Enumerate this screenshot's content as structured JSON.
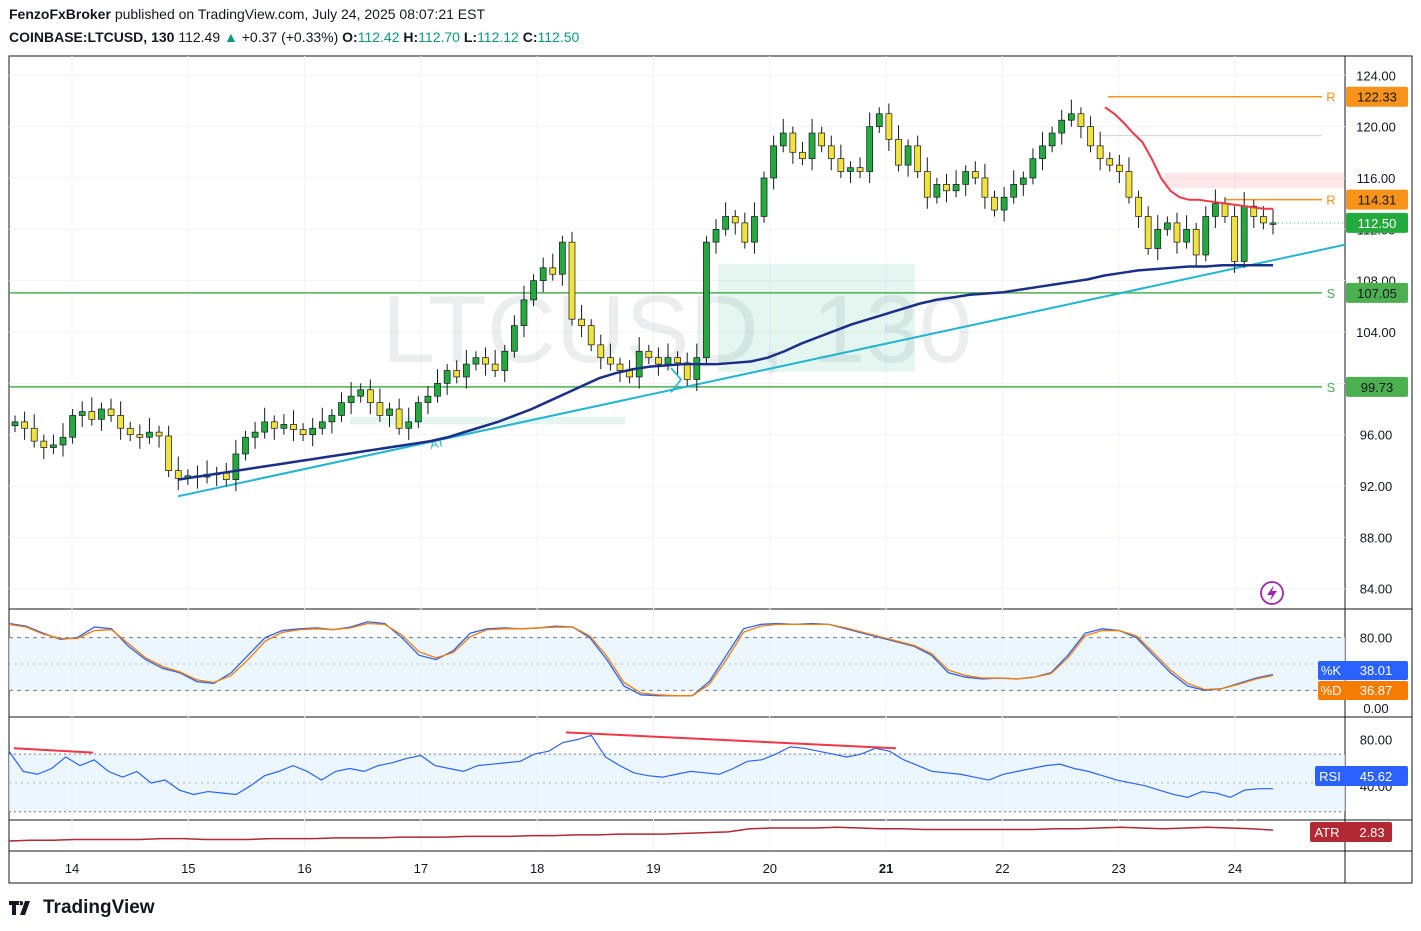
{
  "header": {
    "author": "FenzoFxBroker",
    "published": "published on TradingView.com, July 24, 2025 08:07:21 EST",
    "symbol": "COINBASE:LTCUSD, 130",
    "last": "112.49",
    "change": "+0.37 (+0.33%)",
    "o_label": "O:",
    "o": "112.42",
    "h_label": "H:",
    "h": "112.70",
    "l_label": "L:",
    "l": "112.12",
    "c_label": "C:",
    "c": "112.50"
  },
  "brand": {
    "name": "TradingView"
  },
  "watermark": "LTCUSD, 130",
  "colors": {
    "up": "#089981",
    "up_body": "#22ab3c",
    "down_body": "#f2e33a",
    "wick": "#131722",
    "ma": "#1a2e8a",
    "trend": "#1fb5d3",
    "resist": "#f7931a",
    "support": "#4caf50",
    "red": "#f23645",
    "stoch_k": "#2962ff",
    "stoch_d": "#f57c00",
    "rsi": "#2962ff",
    "atr": "#b22833",
    "band": "#e3f2fd"
  },
  "chart_data": [
    {
      "type": "candlestick",
      "title": "COINBASE:LTCUSD, 130",
      "x_ticks": [
        "14",
        "15",
        "16",
        "17",
        "18",
        "19",
        "20",
        "21",
        "22",
        "23",
        "24"
      ],
      "y_ticks": [
        "84.00",
        "88.00",
        "92.00",
        "96.00",
        "100.00",
        "104.00",
        "108.00",
        "112.00",
        "116.00",
        "120.00",
        "124.00"
      ],
      "ylim": [
        82.5,
        125.5
      ],
      "levels": [
        {
          "label": "R",
          "value": 122.33,
          "tag": "122.33",
          "color": "#f7931a"
        },
        {
          "label": "R",
          "value": 114.31,
          "tag": "114.31",
          "color": "#f7931a"
        },
        {
          "label": "S",
          "value": 107.05,
          "tag": "107.05",
          "color": "#4caf50"
        },
        {
          "label": "S",
          "value": 99.73,
          "tag": "99.73",
          "color": "#4caf50"
        }
      ],
      "last_price_tag": "112.50",
      "trendline_label": "AT",
      "closes": [
        97,
        96.5,
        95.5,
        95,
        95.2,
        95.8,
        97.5,
        97.8,
        97.2,
        98,
        97.5,
        96.5,
        96,
        95.8,
        96.2,
        95.9,
        93.2,
        92.6,
        92.8,
        92.7,
        92.9,
        93,
        92.5,
        94.5,
        95.8,
        96.2,
        97,
        96.5,
        96.8,
        96.4,
        96,
        96.5,
        97,
        97.5,
        98.5,
        99,
        99.5,
        98.5,
        97.5,
        98,
        96.5,
        97,
        98.5,
        99,
        100,
        101,
        100.5,
        101.5,
        102,
        101.5,
        101,
        102.5,
        104.5,
        106.5,
        108,
        109,
        108.5,
        111,
        105,
        104.5,
        103,
        102,
        101.5,
        101,
        100.5,
        102.5,
        102,
        101.5,
        102,
        101.6,
        100.3,
        102,
        111,
        112,
        113,
        112.5,
        111,
        113,
        116,
        118.5,
        119.5,
        118,
        117.5,
        119.5,
        118.5,
        117.5,
        116.5,
        116.8,
        116.5,
        120,
        121,
        119,
        117,
        118.5,
        116.5,
        114.5,
        115.5,
        115,
        115.5,
        116.5,
        116,
        114.5,
        113.5,
        114.5,
        115.5,
        116,
        117.5,
        118.5,
        119.5,
        120.5,
        121,
        120,
        118.5,
        117.5,
        117,
        116.5,
        114.5,
        113,
        110.5,
        112,
        112.5,
        111,
        112,
        110,
        113,
        114,
        113,
        109.5,
        113.8,
        113,
        112.5,
        112.5
      ],
      "moving_average": [
        92.5,
        92.7,
        92.9,
        93.1,
        93.3,
        93.5,
        93.7,
        93.9,
        94.1,
        94.3,
        94.5,
        94.7,
        94.9,
        95.1,
        95.3,
        95.5,
        95.8,
        96.2,
        96.6,
        97.0,
        97.5,
        98.0,
        98.6,
        99.2,
        99.8,
        100.4,
        100.8,
        101.1,
        101.3,
        101.4,
        101.5,
        101.5,
        101.5,
        101.6,
        101.7,
        102.0,
        102.5,
        103.1,
        103.6,
        104.1,
        104.6,
        105.0,
        105.4,
        105.8,
        106.2,
        106.5,
        106.7,
        106.9,
        107.0,
        107.1,
        107.3,
        107.5,
        107.7,
        107.9,
        108.1,
        108.4,
        108.6,
        108.8,
        108.9,
        109.0,
        109.1,
        109.1,
        109.2,
        109.2,
        109.2,
        109.2
      ],
      "trendline": {
        "from": [
          92,
          91.2
        ],
        "to": [
          1345,
          110.8
        ]
      },
      "resistance_curve": [
        121.5,
        121,
        120.3,
        119.5,
        118.8,
        117.5,
        116,
        115,
        114.5,
        114.3,
        114.3,
        114.2,
        114.1,
        114.0,
        113.9,
        113.8,
        113.7,
        113.6,
        113.6
      ]
    },
    {
      "type": "line",
      "title": "Stochastic",
      "y_ticks": [
        "80.00",
        "0.00"
      ],
      "ylim": [
        0,
        100
      ],
      "series": [
        {
          "name": "%K",
          "value_tag": "38.01",
          "values": [
            96,
            93,
            85,
            78,
            80,
            92,
            90,
            70,
            55,
            45,
            40,
            30,
            28,
            40,
            60,
            80,
            88,
            90,
            91,
            89,
            92,
            98,
            96,
            80,
            60,
            55,
            65,
            85,
            90,
            91,
            90,
            91,
            93,
            92,
            80,
            55,
            25,
            15,
            14,
            14,
            14,
            30,
            60,
            90,
            95,
            96,
            95,
            96,
            95,
            90,
            85,
            80,
            75,
            70,
            60,
            40,
            35,
            33,
            34,
            33,
            35,
            40,
            60,
            85,
            90,
            88,
            80,
            60,
            40,
            25,
            20,
            22,
            28,
            34,
            38
          ]
        },
        {
          "name": "%D",
          "value_tag": "36.87",
          "values": [
            95,
            92,
            84,
            79,
            79,
            88,
            89,
            73,
            57,
            47,
            41,
            32,
            29,
            37,
            55,
            76,
            86,
            89,
            90,
            89,
            91,
            96,
            95,
            83,
            64,
            57,
            63,
            81,
            89,
            90,
            90,
            91,
            92,
            92,
            82,
            59,
            29,
            17,
            15,
            14,
            14,
            27,
            55,
            86,
            93,
            95,
            95,
            95,
            95,
            91,
            86,
            81,
            76,
            71,
            62,
            43,
            37,
            34,
            34,
            33,
            35,
            39,
            57,
            82,
            88,
            88,
            82,
            63,
            43,
            28,
            21,
            22,
            27,
            33,
            37
          ]
        }
      ]
    },
    {
      "type": "line",
      "title": "RSI",
      "y_ticks": [
        "80.00",
        "40.00"
      ],
      "ylim": [
        25,
        95
      ],
      "series": [
        {
          "name": "RSI",
          "value_tag": "45.62",
          "values": [
            72,
            58,
            56,
            60,
            68,
            62,
            66,
            58,
            54,
            58,
            50,
            52,
            45,
            42,
            44,
            43,
            42,
            48,
            55,
            58,
            62,
            58,
            52,
            58,
            60,
            58,
            62,
            64,
            67,
            69,
            62,
            60,
            58,
            62,
            63,
            64,
            65,
            70,
            72,
            78,
            80,
            83,
            68,
            62,
            57,
            55,
            54,
            56,
            58,
            57,
            56,
            60,
            65,
            66,
            70,
            75,
            74,
            72,
            70,
            68,
            70,
            74,
            72,
            66,
            62,
            58,
            57,
            56,
            54,
            52,
            56,
            58,
            60,
            62,
            63,
            60,
            58,
            55,
            52,
            50,
            48,
            45,
            42,
            40,
            44,
            43,
            40,
            45,
            46,
            46
          ]
        }
      ],
      "divergence_lines": 3
    },
    {
      "type": "line",
      "title": "ATR",
      "series": [
        {
          "name": "ATR",
          "value_tag": "2.83",
          "values": [
            1.4,
            1.5,
            1.5,
            1.6,
            1.6,
            1.6,
            1.6,
            1.7,
            1.7,
            1.6,
            1.6,
            1.6,
            1.7,
            1.7,
            1.7,
            1.8,
            1.8,
            1.8,
            1.9,
            1.9,
            1.9,
            2.0,
            2.0,
            2.0,
            2.1,
            2.1,
            2.2,
            2.2,
            2.3,
            2.3,
            2.3,
            2.4,
            2.5,
            2.6,
            3.0,
            3.1,
            3.1,
            3.1,
            3.2,
            3.1,
            3.0,
            3.0,
            2.9,
            2.9,
            2.9,
            2.9,
            2.9,
            2.9,
            3.0,
            3.0,
            3.1,
            3.2,
            3.1,
            3.0,
            3.1,
            3.2,
            3.1,
            3.0,
            2.83
          ]
        }
      ]
    }
  ]
}
